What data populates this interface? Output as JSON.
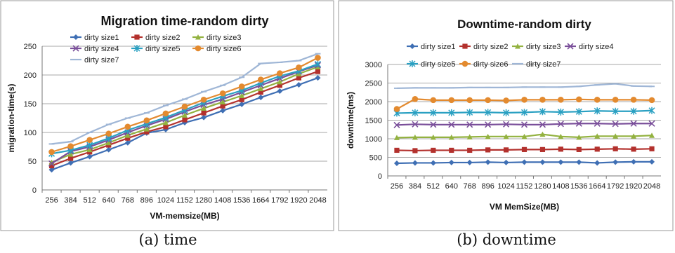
{
  "captions": [
    "(a) time",
    "(b) downtime"
  ],
  "chart_data": [
    {
      "type": "line",
      "title": "Migration time-random dirty",
      "xlabel": "VM-memsize(MB)",
      "ylabel": "migration-time(s)",
      "ylim": [
        0,
        250
      ],
      "yticks": [
        0,
        50,
        100,
        150,
        200,
        250
      ],
      "categories": [
        "256",
        "384",
        "512",
        "640",
        "768",
        "896",
        "1024",
        "1152",
        "1280",
        "1408",
        "1536",
        "1664",
        "1792",
        "1920",
        "2048"
      ],
      "grid": true,
      "legend": "top-left",
      "series": [
        {
          "name": "dirty size1",
          "color": "#3f6fb4",
          "marker": "diamond",
          "values": [
            35,
            47,
            58,
            70,
            82,
            99,
            105,
            117,
            126,
            138,
            149,
            161,
            172,
            183,
            195
          ]
        },
        {
          "name": "dirty size2",
          "color": "#b3312d",
          "marker": "square",
          "values": [
            42,
            55,
            66,
            78,
            90,
            101,
            110,
            122,
            134,
            146,
            157,
            170,
            182,
            195,
            206
          ]
        },
        {
          "name": "dirty size3",
          "color": "#93b240",
          "marker": "triangle",
          "values": [
            48,
            62,
            70,
            82,
            95,
            106,
            117,
            130,
            142,
            153,
            164,
            176,
            188,
            202,
            214
          ]
        },
        {
          "name": "dirty size4",
          "color": "#7a4f9a",
          "marker": "x",
          "values": [
            46,
            67,
            75,
            87,
            100,
            112,
            123,
            136,
            148,
            158,
            170,
            182,
            194,
            206,
            217
          ]
        },
        {
          "name": "dirty size5",
          "color": "#2aa0c2",
          "marker": "asterisk",
          "values": [
            63,
            69,
            78,
            90,
            104,
            115,
            126,
            139,
            152,
            163,
            173,
            186,
            198,
            207,
            219
          ]
        },
        {
          "name": "dirty size6",
          "color": "#e38a2f",
          "marker": "circle",
          "values": [
            66,
            76,
            87,
            98,
            110,
            121,
            133,
            145,
            157,
            168,
            180,
            192,
            203,
            213,
            230
          ]
        },
        {
          "name": "dirty size7",
          "color": "#9fb6d6",
          "marker": "dash",
          "values": [
            80,
            84,
            100,
            114,
            125,
            134,
            147,
            158,
            171,
            182,
            196,
            220,
            222,
            225,
            237
          ]
        }
      ]
    },
    {
      "type": "line",
      "title": "Downtime-random dirty",
      "xlabel": "VM MemSize(MB)",
      "ylabel": "downtime(ms)",
      "ylim": [
        0,
        3000
      ],
      "yticks": [
        0,
        500,
        1000,
        1500,
        2000,
        2500,
        3000
      ],
      "categories": [
        "256",
        "384",
        "512",
        "640",
        "768",
        "896",
        "1024",
        "1152",
        "1280",
        "1408",
        "1536",
        "1664",
        "1792",
        "1920",
        "2048"
      ],
      "grid": true,
      "legend": "top",
      "series": [
        {
          "name": "dirty size1",
          "color": "#3f6fb4",
          "marker": "diamond",
          "values": [
            340,
            350,
            350,
            360,
            360,
            370,
            360,
            370,
            370,
            370,
            370,
            350,
            370,
            380,
            380
          ]
        },
        {
          "name": "dirty size2",
          "color": "#b3312d",
          "marker": "square",
          "values": [
            690,
            680,
            690,
            690,
            690,
            700,
            700,
            710,
            710,
            720,
            710,
            720,
            730,
            720,
            730
          ]
        },
        {
          "name": "dirty size3",
          "color": "#93b240",
          "marker": "triangle",
          "values": [
            1030,
            1040,
            1040,
            1040,
            1050,
            1060,
            1060,
            1060,
            1120,
            1060,
            1040,
            1070,
            1070,
            1070,
            1090
          ]
        },
        {
          "name": "dirty size4",
          "color": "#7a4f9a",
          "marker": "x",
          "values": [
            1370,
            1390,
            1380,
            1380,
            1380,
            1380,
            1390,
            1380,
            1380,
            1400,
            1410,
            1410,
            1400,
            1410,
            1410
          ]
        },
        {
          "name": "dirty size5",
          "color": "#2aa0c2",
          "marker": "asterisk",
          "values": [
            1690,
            1700,
            1700,
            1700,
            1710,
            1710,
            1700,
            1710,
            1730,
            1720,
            1730,
            1750,
            1740,
            1740,
            1760
          ]
        },
        {
          "name": "dirty size6",
          "color": "#e38a2f",
          "marker": "circle",
          "values": [
            1800,
            2070,
            2040,
            2040,
            2040,
            2040,
            2030,
            2050,
            2050,
            2050,
            2060,
            2050,
            2050,
            2050,
            2040
          ]
        },
        {
          "name": "dirty size7",
          "color": "#9fb6d6",
          "marker": "dash",
          "values": [
            2360,
            2370,
            2370,
            2370,
            2380,
            2380,
            2380,
            2390,
            2390,
            2390,
            2410,
            2450,
            2480,
            2420,
            2410
          ]
        }
      ]
    }
  ]
}
